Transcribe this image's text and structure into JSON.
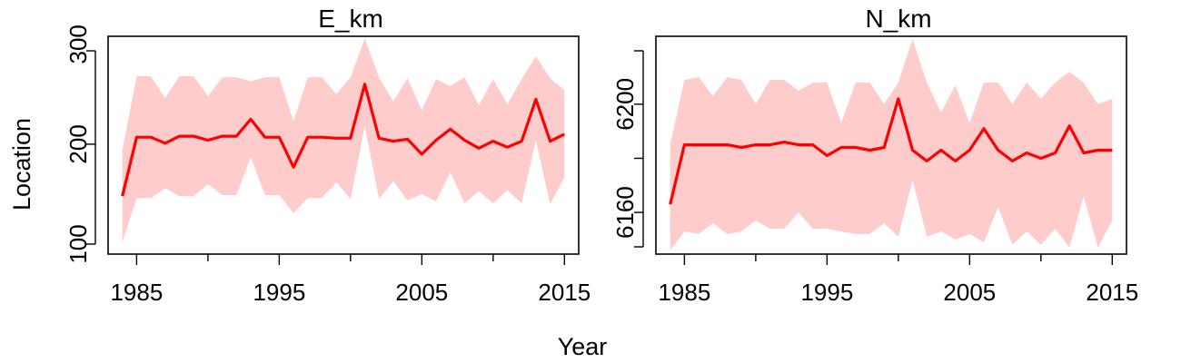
{
  "figure": {
    "x_label": "Year",
    "y_label": "Location"
  },
  "chart_data": [
    {
      "type": "line",
      "title": "E_km",
      "xlabel": "Year",
      "ylabel": "Location",
      "xlim": [
        1983,
        2016
      ],
      "ylim": [
        90,
        308
      ],
      "x_ticks": [
        1985,
        1995,
        2005,
        2015
      ],
      "x_tick_labels": [
        "1985",
        "1995",
        "2005",
        "2015"
      ],
      "y_ticks": [
        100,
        200,
        300
      ],
      "y_tick_labels": [
        "100",
        "200",
        "300"
      ],
      "grid": false,
      "line_color": "#ff0000",
      "band_color": "#ffcccc",
      "series": [
        {
          "x": [
            1984,
            1985,
            1986,
            1987,
            1988,
            1989,
            1990,
            1991,
            1992,
            1993,
            1994,
            1995,
            1996,
            1997,
            1998,
            1999,
            2000,
            2001,
            2002,
            2003,
            2004,
            2005,
            2006,
            2007,
            2008,
            2009,
            2010,
            2011,
            2012,
            2013,
            2014,
            2015
          ],
          "values": [
            148,
            207,
            207,
            201,
            208,
            208,
            204,
            208,
            208,
            225,
            207,
            207,
            177,
            207,
            207,
            206,
            206,
            260,
            206,
            203,
            205,
            190,
            204,
            215,
            204,
            196,
            203,
            197,
            203,
            245,
            203,
            210
          ],
          "lower": [
            102,
            146,
            146,
            156,
            148,
            148,
            160,
            149,
            149,
            187,
            149,
            149,
            131,
            146,
            146,
            162,
            145,
            218,
            145,
            163,
            144,
            150,
            143,
            172,
            141,
            153,
            141,
            154,
            141,
            204,
            140,
            167
          ],
          "upper": [
            194,
            268,
            268,
            246,
            268,
            268,
            248,
            267,
            267,
            263,
            267,
            267,
            223,
            267,
            267,
            250,
            267,
            306,
            267,
            243,
            266,
            234,
            265,
            258,
            267,
            239,
            265,
            240,
            265,
            288,
            266,
            254
          ]
        }
      ]
    },
    {
      "type": "line",
      "title": "N_km",
      "xlabel": "Year",
      "ylabel": "Location",
      "xlim": [
        1983,
        2016
      ],
      "ylim": [
        6144.6,
        6225.1
      ],
      "x_ticks": [
        1985,
        1995,
        2005,
        2015
      ],
      "x_tick_labels": [
        "1985",
        "1995",
        "2005",
        "2015"
      ],
      "y_ticks": [
        6160,
        6200
      ],
      "y_tick_labels": [
        "6160",
        "6200"
      ],
      "y_tick_marks": [
        6140,
        6160,
        6180,
        6200,
        6220
      ],
      "grid": false,
      "line_color": "#ff0000",
      "band_color": "#ffcccc",
      "series": [
        {
          "x": [
            1984,
            1985,
            1986,
            1987,
            1988,
            1989,
            1990,
            1991,
            1992,
            1993,
            1994,
            1995,
            1996,
            1997,
            1998,
            1999,
            2000,
            2001,
            2002,
            2003,
            2004,
            2005,
            2006,
            2007,
            2008,
            2009,
            2010,
            2011,
            2012,
            2013,
            2014,
            2015
          ],
          "values": [
            6163,
            6185,
            6185,
            6185,
            6185,
            6184,
            6185,
            6185,
            6186,
            6185,
            6185,
            6181,
            6184,
            6184,
            6183,
            6184,
            6202,
            6183,
            6179,
            6183,
            6179,
            6183,
            6191,
            6183,
            6179,
            6182,
            6180,
            6182,
            6192,
            6182,
            6183,
            6183
          ],
          "lower": [
            6146,
            6153,
            6152,
            6156,
            6152,
            6153,
            6157,
            6154,
            6154,
            6160,
            6154,
            6154,
            6153,
            6152,
            6152,
            6156,
            6151,
            6172,
            6151,
            6153,
            6150,
            6152,
            6149,
            6162,
            6148,
            6153,
            6148,
            6154,
            6147,
            6166,
            6147,
            6157
          ],
          "upper": [
            6185,
            6209,
            6210,
            6203,
            6210,
            6209,
            6200,
            6209,
            6209,
            6205,
            6208,
            6208,
            6193,
            6208,
            6208,
            6200,
            6208,
            6224,
            6208,
            6197,
            6207,
            6193,
            6208,
            6208,
            6200,
            6208,
            6202,
            6208,
            6212,
            6208,
            6200,
            6202
          ]
        }
      ]
    }
  ]
}
